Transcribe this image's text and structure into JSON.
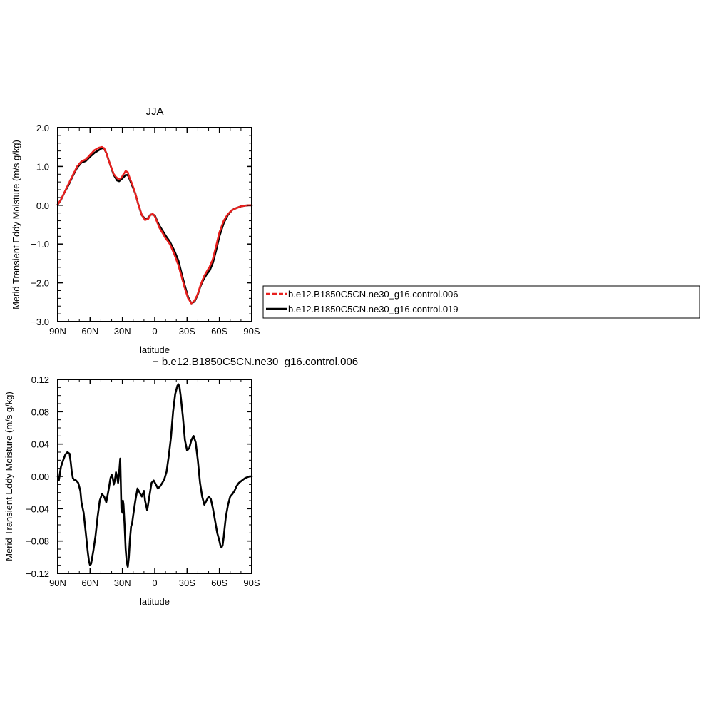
{
  "chart_data": [
    {
      "type": "line",
      "title": "JJA",
      "xlabel": "latitude",
      "ylabel": "Merid Transient Eddy Moisture (m/s g/kg)",
      "xlim": [
        90,
        -90
      ],
      "ylim": [
        -3.0,
        2.0
      ],
      "x_ticks": [
        90,
        60,
        30,
        0,
        -30,
        -60,
        -90
      ],
      "x_tick_labels": [
        "90N",
        "60N",
        "30N",
        "0",
        "30S",
        "60S",
        "90S"
      ],
      "y_ticks": [
        -3.0,
        -2.0,
        -1.0,
        0.0,
        1.0,
        2.0
      ],
      "y_tick_labels": [
        "−3.0",
        "−2.0",
        "−1.0",
        "0.0",
        "1.0",
        "2.0"
      ],
      "grid": false,
      "legend_position": "right-outside",
      "series": [
        {
          "name": "b.e12.B1850C5CN.ne30_g16.control.006",
          "color": "#e8201e",
          "dash": true,
          "x": [
            90,
            87,
            84,
            80,
            76,
            72,
            68,
            64,
            60,
            56,
            52,
            49,
            47,
            45,
            42,
            38,
            35,
            33,
            31,
            29,
            27,
            25,
            23,
            21,
            18,
            15,
            12,
            9,
            6,
            4,
            2,
            0,
            -2,
            -4,
            -6,
            -8,
            -10,
            -14,
            -18,
            -22,
            -25,
            -28,
            -31,
            -34,
            -37,
            -40,
            -42,
            -44,
            -46,
            -48,
            -51,
            -54,
            -57,
            -60,
            -64,
            -68,
            -72,
            -76,
            -80,
            -84,
            -87,
            -90
          ],
          "y": [
            0.02,
            0.15,
            0.32,
            0.55,
            0.78,
            1.0,
            1.13,
            1.18,
            1.3,
            1.42,
            1.48,
            1.5,
            1.47,
            1.35,
            1.1,
            0.8,
            0.7,
            0.68,
            0.7,
            0.8,
            0.88,
            0.85,
            0.68,
            0.55,
            0.3,
            0.0,
            -0.25,
            -0.38,
            -0.35,
            -0.25,
            -0.22,
            -0.28,
            -0.42,
            -0.56,
            -0.66,
            -0.75,
            -0.85,
            -1.0,
            -1.25,
            -1.55,
            -1.85,
            -2.15,
            -2.4,
            -2.53,
            -2.46,
            -2.28,
            -2.1,
            -1.95,
            -1.82,
            -1.72,
            -1.58,
            -1.38,
            -1.05,
            -0.7,
            -0.4,
            -0.22,
            -0.12,
            -0.07,
            -0.03,
            -0.01,
            0.0,
            0.0
          ]
        },
        {
          "name": "b.e12.B1850C5CN.ne30_g16.control.019",
          "color": "#000000",
          "dash": false,
          "x": [
            90,
            87,
            84,
            80,
            76,
            72,
            68,
            64,
            60,
            56,
            52,
            49,
            47,
            45,
            42,
            38,
            35,
            33,
            31,
            29,
            27,
            25,
            23,
            21,
            18,
            15,
            12,
            9,
            6,
            4,
            2,
            0,
            -2,
            -4,
            -6,
            -8,
            -10,
            -14,
            -18,
            -22,
            -25,
            -28,
            -31,
            -34,
            -37,
            -40,
            -42,
            -44,
            -46,
            -48,
            -51,
            -54,
            -57,
            -60,
            -64,
            -68,
            -72,
            -76,
            -80,
            -84,
            -87,
            -90
          ],
          "y": [
            0.02,
            0.14,
            0.32,
            0.52,
            0.76,
            0.97,
            1.1,
            1.14,
            1.25,
            1.35,
            1.42,
            1.47,
            1.46,
            1.35,
            1.1,
            0.78,
            0.64,
            0.62,
            0.67,
            0.72,
            0.78,
            0.78,
            0.65,
            0.51,
            0.3,
            0.0,
            -0.26,
            -0.35,
            -0.33,
            -0.24,
            -0.24,
            -0.26,
            -0.39,
            -0.51,
            -0.6,
            -0.69,
            -0.78,
            -0.94,
            -1.16,
            -1.43,
            -1.77,
            -2.08,
            -2.37,
            -2.53,
            -2.48,
            -2.3,
            -2.12,
            -1.98,
            -1.88,
            -1.79,
            -1.68,
            -1.48,
            -1.16,
            -0.8,
            -0.46,
            -0.24,
            -0.12,
            -0.07,
            -0.03,
            -0.01,
            0.0,
            0.0
          ]
        }
      ]
    },
    {
      "type": "line",
      "title": "− b.e12.B1850C5CN.ne30_g16.control.006",
      "xlabel": "latitude",
      "ylabel": "Merid Transient Eddy Moisture (m/s g/kg)",
      "xlim": [
        90,
        -90
      ],
      "ylim": [
        -0.12,
        0.12
      ],
      "x_ticks": [
        90,
        60,
        30,
        0,
        -30,
        -60,
        -90
      ],
      "x_tick_labels": [
        "90N",
        "60N",
        "30N",
        "0",
        "30S",
        "60S",
        "90S"
      ],
      "y_ticks": [
        -0.12,
        -0.08,
        -0.04,
        0.0,
        0.04,
        0.08,
        0.12
      ],
      "y_tick_labels": [
        "−0.12",
        "−0.08",
        "−0.04",
        "0.00",
        "0.04",
        "0.08",
        "0.12"
      ],
      "grid": false,
      "series": [
        {
          "color": "#000000",
          "dash": false,
          "x": [
            90,
            89,
            87,
            85,
            83,
            81,
            79,
            78,
            77,
            76,
            75,
            73,
            71,
            69,
            68,
            66,
            64,
            62,
            61,
            60,
            59,
            57,
            55,
            53,
            51,
            49,
            47,
            45,
            43,
            41,
            40,
            39,
            38,
            37,
            36,
            35,
            34,
            33,
            32,
            31,
            30,
            29.5,
            29,
            28,
            27,
            26,
            25,
            24,
            23,
            22,
            21,
            20,
            18,
            16,
            14,
            12,
            10,
            9,
            7,
            5,
            3,
            1,
            -1,
            -3,
            -5,
            -7,
            -9,
            -11,
            -13,
            -15,
            -17,
            -19,
            -21,
            -22,
            -23,
            -24,
            -26,
            -28,
            -30,
            -32,
            -34,
            -36,
            -38,
            -40,
            -42,
            -44,
            -46,
            -48,
            -50,
            -52,
            -54,
            -56,
            -58,
            -60,
            -61,
            -62,
            -63,
            -64,
            -65,
            -66,
            -68,
            -70,
            -72,
            -74,
            -76,
            -78,
            -80,
            -82,
            -84,
            -86,
            -88,
            -90
          ],
          "y": [
            0.0,
            -0.005,
            0.012,
            0.02,
            0.027,
            0.03,
            0.028,
            0.018,
            0.006,
            -0.002,
            -0.004,
            -0.005,
            -0.008,
            -0.018,
            -0.032,
            -0.045,
            -0.07,
            -0.095,
            -0.105,
            -0.11,
            -0.108,
            -0.092,
            -0.074,
            -0.05,
            -0.03,
            -0.022,
            -0.025,
            -0.032,
            -0.018,
            -0.002,
            0.002,
            -0.002,
            -0.01,
            -0.005,
            0.005,
            0.0,
            -0.008,
            0.005,
            0.022,
            -0.04,
            -0.045,
            -0.03,
            -0.035,
            -0.06,
            -0.09,
            -0.106,
            -0.112,
            -0.1,
            -0.078,
            -0.062,
            -0.058,
            -0.048,
            -0.03,
            -0.015,
            -0.02,
            -0.025,
            -0.018,
            -0.03,
            -0.042,
            -0.025,
            -0.008,
            -0.005,
            -0.01,
            -0.015,
            -0.012,
            -0.008,
            -0.003,
            0.006,
            0.025,
            0.048,
            0.08,
            0.102,
            0.112,
            0.114,
            0.11,
            0.1,
            0.075,
            0.045,
            0.032,
            0.035,
            0.045,
            0.05,
            0.042,
            0.02,
            -0.008,
            -0.025,
            -0.035,
            -0.03,
            -0.025,
            -0.028,
            -0.04,
            -0.055,
            -0.07,
            -0.08,
            -0.086,
            -0.088,
            -0.085,
            -0.075,
            -0.062,
            -0.05,
            -0.035,
            -0.025,
            -0.022,
            -0.018,
            -0.012,
            -0.008,
            -0.006,
            -0.004,
            -0.002,
            -0.001,
            0.0,
            0.0
          ]
        }
      ]
    }
  ]
}
